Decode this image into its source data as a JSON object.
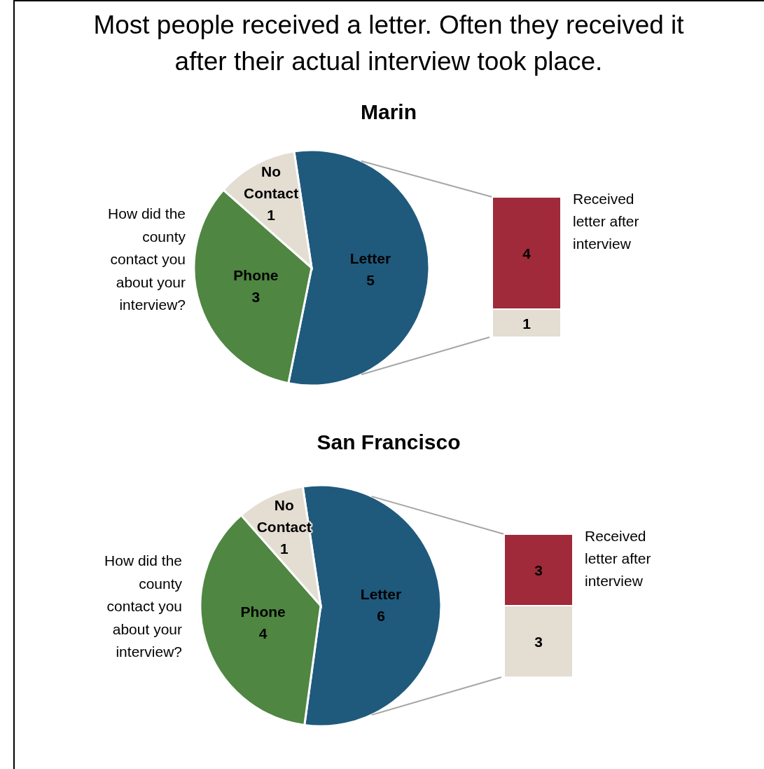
{
  "chart_data": [
    {
      "type": "pie",
      "title": "Most people received a letter. Often they received it after their actual interview took place.",
      "subtitle": "Marin",
      "categories": [
        "Letter",
        "Phone",
        "No Contact"
      ],
      "values": [
        5,
        3,
        1
      ],
      "colors": [
        "#1f5a7d",
        "#4f8642",
        "#e3ddd2"
      ],
      "data_labels": true,
      "annotations": [
        "How did the county contact you about your interview?"
      ]
    },
    {
      "type": "bar",
      "stacked": true,
      "categories": [
        null
      ],
      "series": [
        {
          "color": "#e3ddd2",
          "values": [
            1
          ]
        },
        {
          "name": "Received letter after interview",
          "color": "#a0293a",
          "values": [
            4
          ]
        }
      ],
      "data_labels": true
    },
    {
      "type": "pie",
      "title": "San Francisco",
      "categories": [
        "Letter",
        "Phone",
        "No Contact"
      ],
      "values": [
        6,
        4,
        1
      ],
      "colors": [
        "#1f5a7d",
        "#4f8642",
        "#e3ddd2"
      ],
      "data_labels": true,
      "annotations": [
        "How did the county contact you about your interview?"
      ]
    },
    {
      "type": "bar",
      "stacked": true,
      "categories": [
        null
      ],
      "series": [
        {
          "color": "#e3ddd2",
          "values": [
            3
          ]
        },
        {
          "name": "Received letter after interview",
          "color": "#a0293a",
          "values": [
            3
          ]
        }
      ],
      "data_labels": true
    }
  ]
}
